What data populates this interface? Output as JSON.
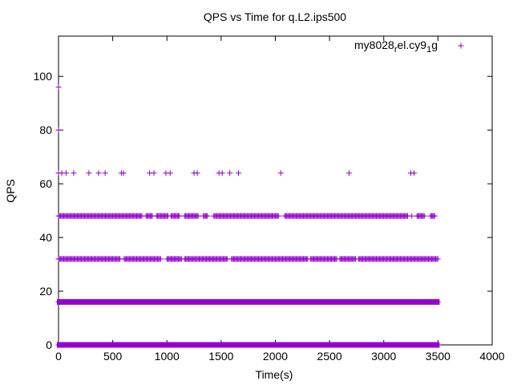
{
  "chart_data": {
    "type": "scatter",
    "title": "QPS vs Time for q.L2.ips500",
    "xlabel": "Time(s)",
    "ylabel": "QPS",
    "xlim": [
      0,
      4000
    ],
    "ylim": [
      0,
      115
    ],
    "x_ticks": [
      0,
      500,
      1000,
      1500,
      2000,
      2500,
      3000,
      3500,
      4000
    ],
    "y_ticks": [
      0,
      20,
      40,
      60,
      80,
      100
    ],
    "grid": false,
    "legend_position": "top-right",
    "legend": {
      "label_main": "my8028",
      "label_sub1": "r",
      "label_mid": "el.cy9",
      "label_sub2": "1",
      "label_end": "g"
    },
    "series": [
      {
        "name": "my8028_rel.cy9_1g",
        "color": "#9400d3",
        "marker": "plus",
        "points": [
          {
            "x": 0,
            "y": 96
          },
          {
            "x": 0,
            "y": 80
          },
          {
            "x": 0,
            "y": 64
          },
          {
            "x": 30,
            "y": 64
          },
          {
            "x": 70,
            "y": 64
          },
          {
            "x": 140,
            "y": 64
          },
          {
            "x": 280,
            "y": 64
          },
          {
            "x": 370,
            "y": 64
          },
          {
            "x": 430,
            "y": 64
          },
          {
            "x": 580,
            "y": 64
          },
          {
            "x": 600,
            "y": 64
          },
          {
            "x": 840,
            "y": 64
          },
          {
            "x": 880,
            "y": 64
          },
          {
            "x": 990,
            "y": 64
          },
          {
            "x": 1030,
            "y": 64
          },
          {
            "x": 1250,
            "y": 64
          },
          {
            "x": 1280,
            "y": 64
          },
          {
            "x": 1480,
            "y": 64
          },
          {
            "x": 1510,
            "y": 64
          },
          {
            "x": 1580,
            "y": 64
          },
          {
            "x": 1660,
            "y": 64
          },
          {
            "x": 2050,
            "y": 64
          },
          {
            "x": 2680,
            "y": 64
          },
          {
            "x": 3250,
            "y": 64
          },
          {
            "x": 3280,
            "y": 64
          }
        ],
        "bands": [
          {
            "y": 48,
            "x_range": [
              0,
              3500
            ],
            "density": "sparse"
          },
          {
            "y": 32,
            "x_range": [
              0,
              3500
            ],
            "density": "medium"
          },
          {
            "y": 16,
            "x_range": [
              0,
              3500
            ],
            "density": "continuous"
          },
          {
            "y": 0,
            "x_range": [
              0,
              3500
            ],
            "density": "continuous"
          }
        ]
      }
    ]
  }
}
